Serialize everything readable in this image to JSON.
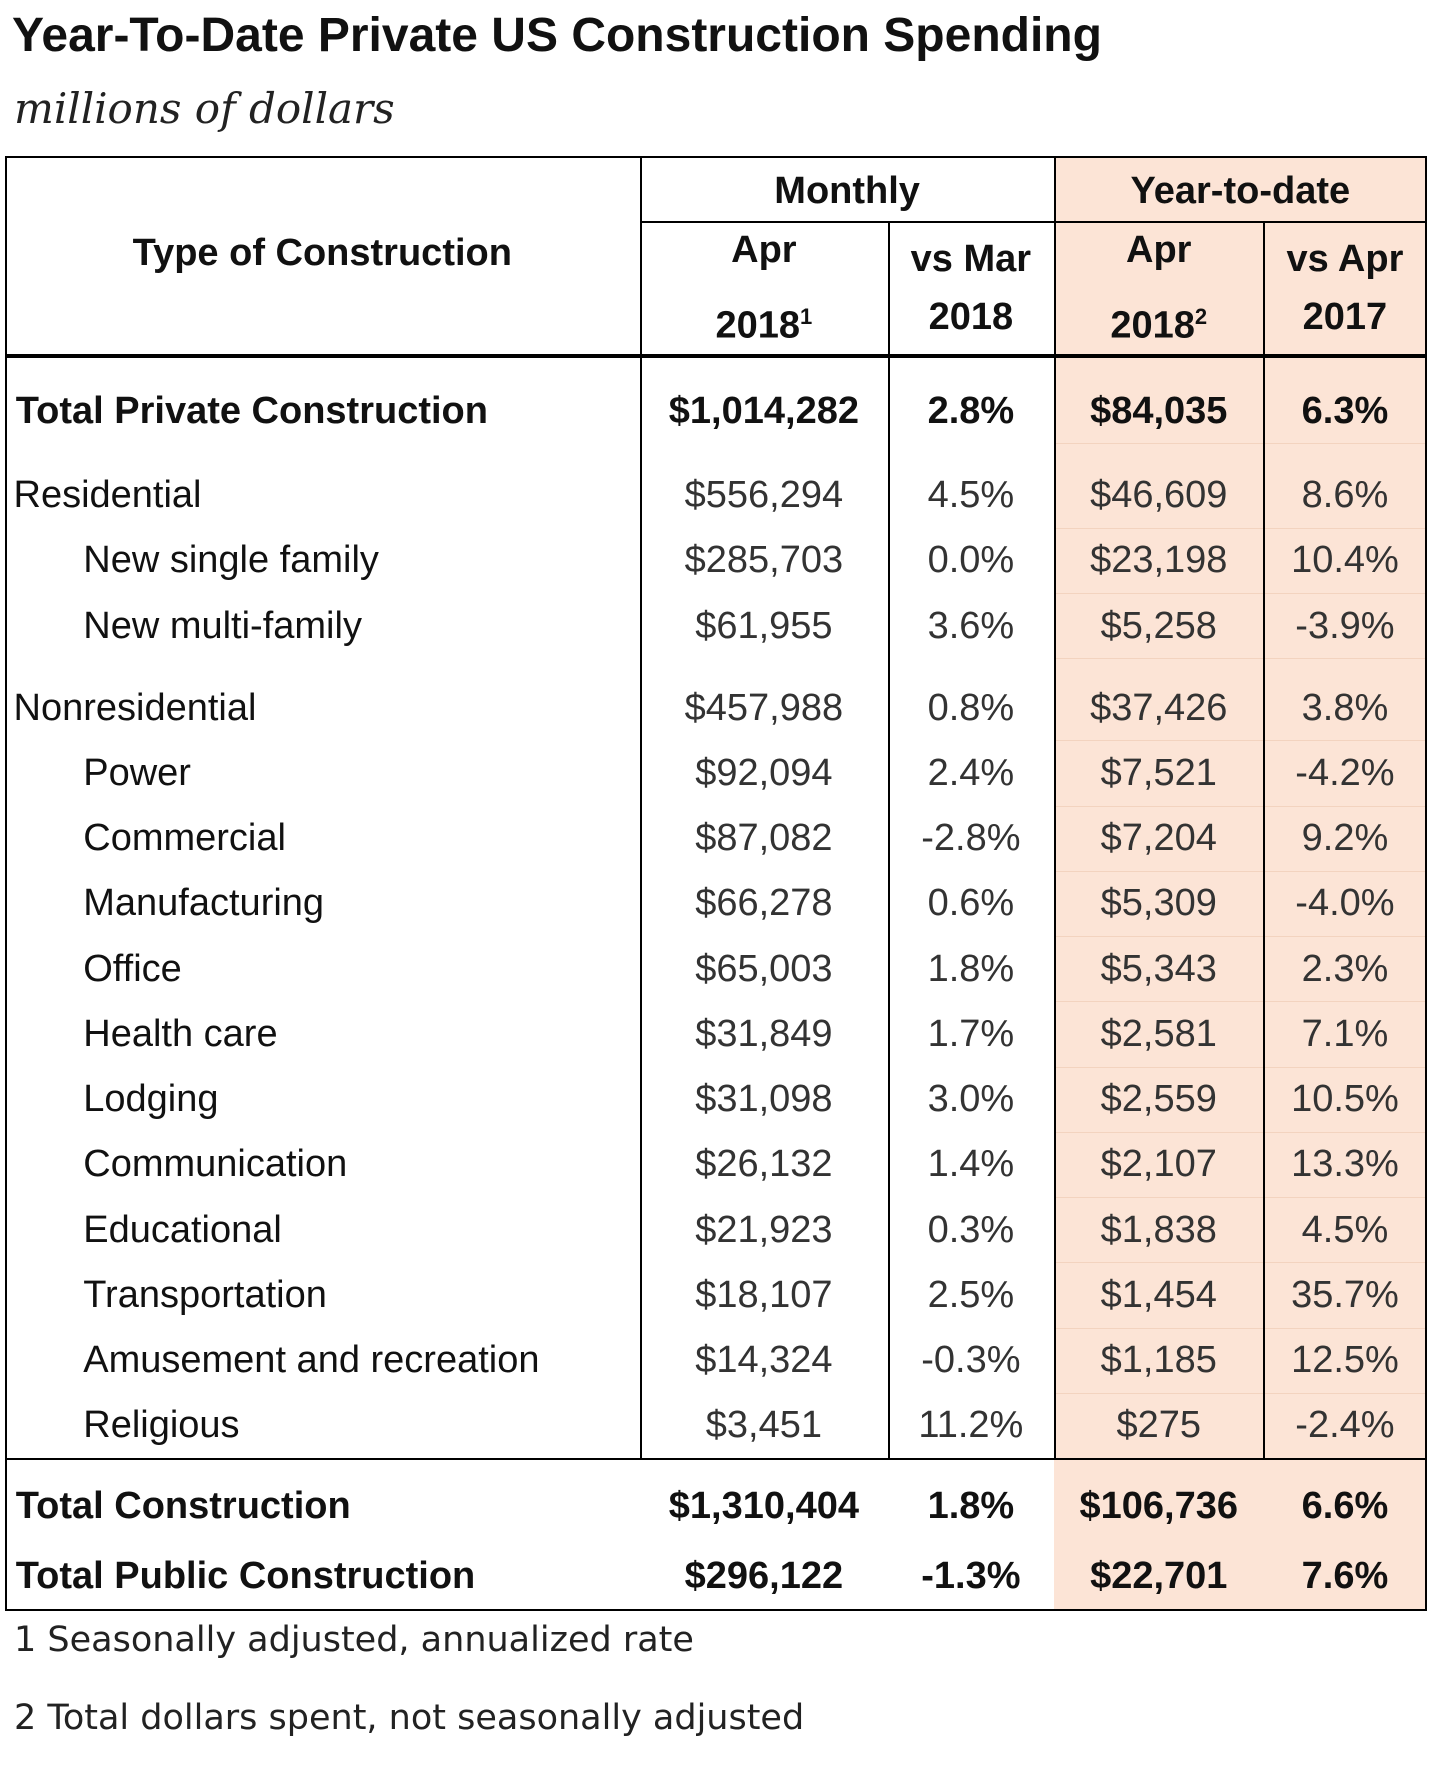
{
  "title": "Year-To-Date Private US Construction Spending",
  "subtitle": "millions of dollars",
  "header": {
    "row_label": "Type of Construction",
    "groups": [
      "Monthly",
      "Year-to-date"
    ],
    "columns": [
      {
        "line1": "Apr",
        "line2": "2018",
        "note": "1"
      },
      {
        "line1": "vs Mar",
        "line2": "2018"
      },
      {
        "line1": "Apr",
        "line2": "2018",
        "note": "2"
      },
      {
        "line1": "vs Apr",
        "line2": "2017"
      }
    ]
  },
  "table": {
    "rows": [
      [
        "Total Private Construction",
        "$1,014,282",
        "2.8%",
        "$84,035",
        "6.3%"
      ],
      [
        "Residential",
        "$556,294",
        "4.5%",
        "$46,609",
        "8.6%"
      ],
      [
        "New single family",
        "$285,703",
        "0.0%",
        "$23,198",
        "10.4%"
      ],
      [
        "New multi-family",
        "$61,955",
        "3.6%",
        "$5,258",
        "-3.9%"
      ],
      [
        "Nonresidential",
        "$457,988",
        "0.8%",
        "$37,426",
        "3.8%"
      ],
      [
        "Power",
        "$92,094",
        "2.4%",
        "$7,521",
        "-4.2%"
      ],
      [
        "Commercial",
        "$87,082",
        "-2.8%",
        "$7,204",
        "9.2%"
      ],
      [
        "Manufacturing",
        "$66,278",
        "0.6%",
        "$5,309",
        "-4.0%"
      ],
      [
        "Office",
        "$65,003",
        "1.8%",
        "$5,343",
        "2.3%"
      ],
      [
        "Health care",
        "$31,849",
        "1.7%",
        "$2,581",
        "7.1%"
      ],
      [
        "Lodging",
        "$31,098",
        "3.0%",
        "$2,559",
        "10.5%"
      ],
      [
        "Communication",
        "$26,132",
        "1.4%",
        "$2,107",
        "13.3%"
      ],
      [
        "Educational",
        "$21,923",
        "0.3%",
        "$1,838",
        "4.5%"
      ],
      [
        "Transportation",
        "$18,107",
        "2.5%",
        "$1,454",
        "35.7%"
      ],
      [
        "Amusement and recreation",
        "$14,324",
        "-0.3%",
        "$1,185",
        "12.5%"
      ],
      [
        "Religious",
        "$3,451",
        "11.2%",
        "$275",
        "-2.4%"
      ],
      [
        "Total Construction",
        "$1,310,404",
        "1.8%",
        "$106,736",
        "6.6%"
      ],
      [
        "Total Public Construction",
        "$296,122",
        "-1.3%",
        "$22,701",
        "7.6%"
      ]
    ]
  },
  "footnotes": [
    "1 Seasonally adjusted, annualized rate",
    "2 Total dollars spent, not seasonally adjusted"
  ]
}
